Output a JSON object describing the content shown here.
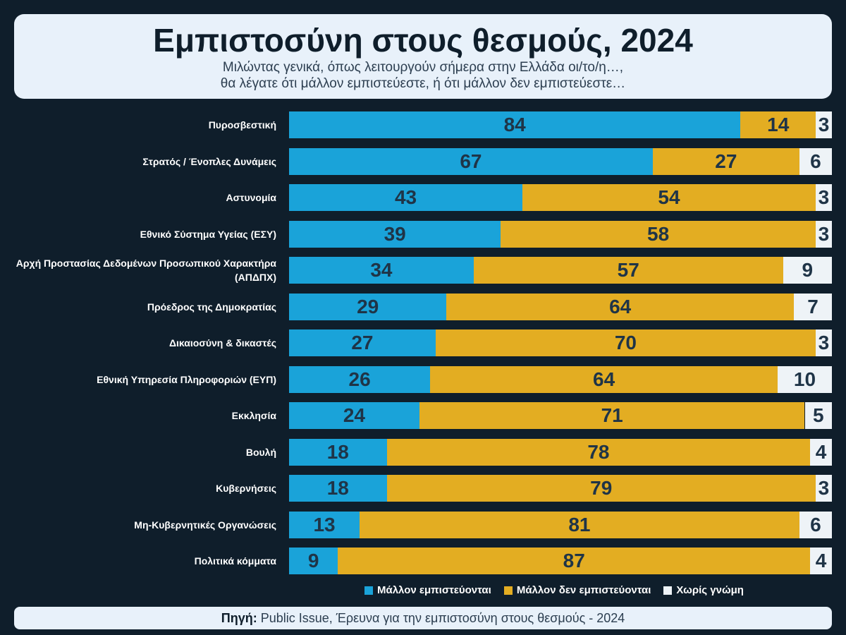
{
  "header": {
    "title": "Εμπιστοσύνη στους θεσμούς, 2024",
    "subtitle_line1": "Μιλώντας γενικά, όπως λειτουργούν σήμερα στην Ελλάδα οι/το/η…,",
    "subtitle_line2": "θα λέγατε ότι μάλλον εμπιστεύεστε, ή ότι μάλλον δεν εμπιστεύεστε…"
  },
  "chart_data": {
    "type": "bar",
    "orientation": "horizontal",
    "stacked": true,
    "xlim": [
      0,
      100
    ],
    "categories": [
      "Πυροσβεστική",
      "Στρατός / Ένοπλες Δυνάμεις",
      "Αστυνομία",
      "Εθνικό Σύστημα Υγείας (ΕΣΥ)",
      "Αρχή Προστασίας Δεδομένων Προσωπικού Χαρακτήρα (ΑΠΔΠΧ)",
      "Πρόεδρος της Δημοκρατίας",
      "Δικαιοσύνη & δικαστές",
      "Εθνική Υπηρεσία Πληροφοριών (ΕΥΠ)",
      "Εκκλησία",
      "Βουλή",
      "Κυβερνήσεις",
      "Μη-Κυβερνητικές Οργανώσεις",
      "Πολιτικά κόμματα"
    ],
    "series": [
      {
        "name": "Μάλλον εμπιστεύονται",
        "color": "#1aa3d9",
        "values": [
          84,
          67,
          43,
          39,
          34,
          29,
          27,
          26,
          24,
          18,
          18,
          13,
          9
        ]
      },
      {
        "name": "Μάλλον δεν εμπιστεύονται",
        "color": "#e3ad22",
        "values": [
          14,
          27,
          54,
          58,
          57,
          64,
          70,
          64,
          71,
          78,
          79,
          81,
          87
        ]
      },
      {
        "name": "Χωρίς γνώμη",
        "color": "#eef3f7",
        "values": [
          3,
          6,
          3,
          3,
          9,
          7,
          3,
          10,
          5,
          4,
          3,
          6,
          4
        ]
      }
    ],
    "legend_position": "bottom-right"
  },
  "footer": {
    "source_label": "Πηγή:",
    "source_text": "Public Issue, Έρευνα για την εμπιστοσύνη στους θεσμούς - 2024"
  }
}
